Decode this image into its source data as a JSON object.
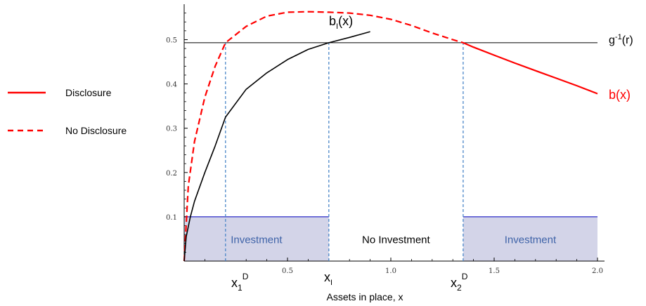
{
  "chart_data": {
    "type": "line",
    "xlabel": "Assets in place, x",
    "ylabel": "",
    "xlim": [
      0,
      2.0
    ],
    "ylim": [
      0,
      0.58
    ],
    "grid": false,
    "x_ticks": [
      "0.5",
      "1.0",
      "1.5",
      "2.0"
    ],
    "y_ticks": [
      "0.1",
      "0.2",
      "0.3",
      "0.4",
      "0.5"
    ],
    "legend": {
      "placement": "left",
      "items": [
        {
          "label": "Disclosure",
          "style": "solid",
          "color": "#ff0000"
        },
        {
          "label": "No Disclosure",
          "style": "dashed",
          "color": "#ff0000"
        }
      ]
    },
    "threshold": {
      "y": 0.493,
      "label_main": "g",
      "label_sup": "-1",
      "label_tail": "(r)"
    },
    "series": [
      {
        "name": "b(x)",
        "color": "#ff0000",
        "segments": [
          {
            "style": "dashed",
            "x": [
              0,
              0.02,
              0.05,
              0.1,
              0.15,
              0.2,
              0.3,
              0.4,
              0.5,
              0.6,
              0.7,
              0.8,
              0.9,
              1.0,
              1.1,
              1.2,
              1.3,
              1.35
            ],
            "y": [
              0.0,
              0.17,
              0.27,
              0.37,
              0.44,
              0.493,
              0.53,
              0.553,
              0.562,
              0.563,
              0.562,
              0.56,
              0.555,
              0.546,
              0.532,
              0.515,
              0.5,
              0.493
            ]
          },
          {
            "style": "solid",
            "x": [
              1.35,
              1.4,
              1.5,
              1.6,
              1.7,
              1.8,
              1.9,
              2.0
            ],
            "y": [
              0.493,
              0.483,
              0.465,
              0.447,
              0.43,
              0.413,
              0.396,
              0.378
            ]
          }
        ]
      },
      {
        "name": "b_I(x)",
        "color": "#000000",
        "segments": [
          {
            "style": "solid",
            "x": [
              0,
              0.01,
              0.03,
              0.05,
              0.1,
              0.15,
              0.2,
              0.3,
              0.4,
              0.5,
              0.6,
              0.7,
              0.8,
              0.9
            ],
            "y": [
              0.0,
              0.055,
              0.1,
              0.135,
              0.2,
              0.26,
              0.325,
              0.388,
              0.425,
              0.455,
              0.478,
              0.493,
              0.505,
              0.518
            ]
          }
        ]
      }
    ],
    "verticals": [
      {
        "x": 0.2,
        "label_main": "x",
        "label_sub": "1",
        "label_sup": "D"
      },
      {
        "x": 0.7,
        "label_main": "x",
        "label_sub": "I",
        "label_sup": ""
      },
      {
        "x": 1.35,
        "label_main": "x",
        "label_sub": "2",
        "label_sup": "D"
      }
    ],
    "regions": [
      {
        "x0": 0,
        "x1": 0.7,
        "height": 0.1,
        "label": "Investment",
        "shaded": true
      },
      {
        "x0": 0.7,
        "x1": 1.35,
        "height": 0.1,
        "label": "No Investment",
        "shaded": false
      },
      {
        "x0": 1.35,
        "x1": 2.0,
        "height": 0.1,
        "label": "Investment",
        "shaded": true
      }
    ],
    "curve_labels": {
      "b": {
        "main": "b(x)",
        "color": "#ff0000"
      },
      "bI": {
        "main": "b",
        "sub": "I",
        "tail": "(x)",
        "color": "#000000"
      }
    }
  }
}
